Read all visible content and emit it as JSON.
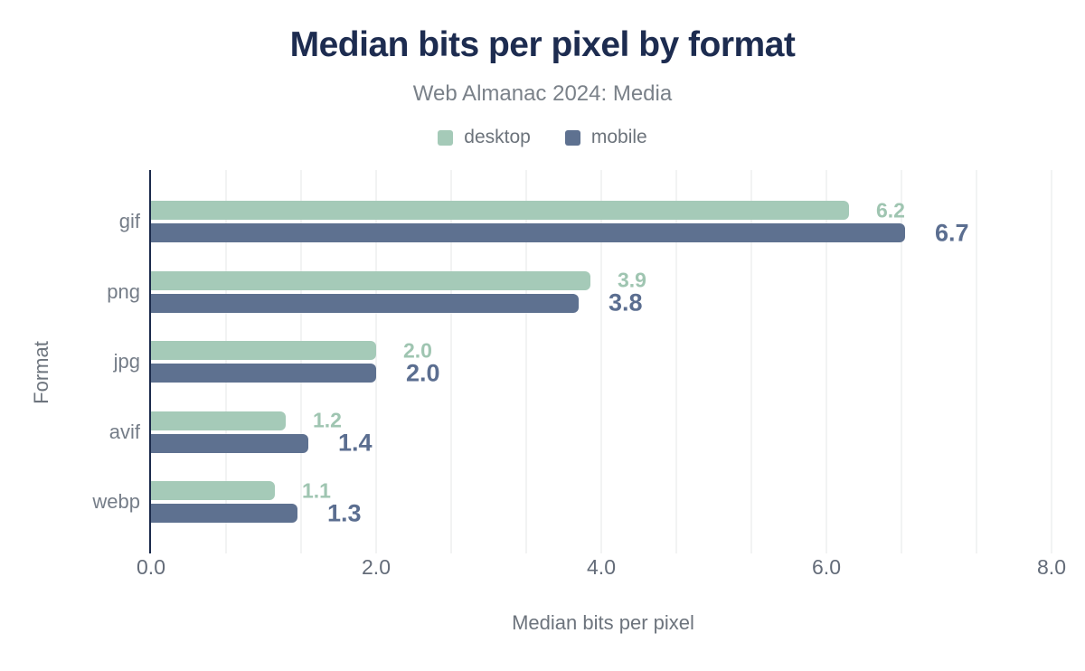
{
  "chart_data": {
    "type": "bar",
    "orientation": "horizontal",
    "title": "Median bits per pixel by format",
    "subtitle": "Web Almanac 2024: Media",
    "categories": [
      "gif",
      "png",
      "jpg",
      "avif",
      "webp"
    ],
    "series": [
      {
        "name": "desktop",
        "color": "#a5cab8",
        "label_color": "#9fc5b1",
        "values": [
          6.2,
          3.9,
          2.0,
          1.2,
          1.1
        ],
        "labels": [
          "6.2",
          "3.9",
          "2.0",
          "1.2",
          "1.1"
        ]
      },
      {
        "name": "mobile",
        "color": "#5e7190",
        "label_color": "#5b6e90",
        "values": [
          6.7,
          3.8,
          2.0,
          1.4,
          1.3
        ],
        "labels": [
          "6.7",
          "3.8",
          "2.0",
          "1.4",
          "1.3"
        ]
      }
    ],
    "xlabel": "Median bits per pixel",
    "ylabel": "Format",
    "xlim": [
      0,
      8
    ],
    "xticks": {
      "values": [
        0,
        2,
        4,
        6,
        8
      ],
      "labels": [
        "0.0",
        "2.0",
        "4.0",
        "6.0",
        "8.0"
      ]
    },
    "grid": true,
    "minor_grid_step": 0.6667,
    "legend_position": "top"
  },
  "colors": {
    "background": "#ffffff",
    "title_text": "#1d2c50",
    "subtitle_text": "#7a8189",
    "legend_text": "#6c737b",
    "category_text": "#757d88",
    "tick_text": "#646c79",
    "axis_title_text": "#6d747d",
    "axis_line": "#1b2a4b",
    "gridline": "#f2f3f3"
  }
}
